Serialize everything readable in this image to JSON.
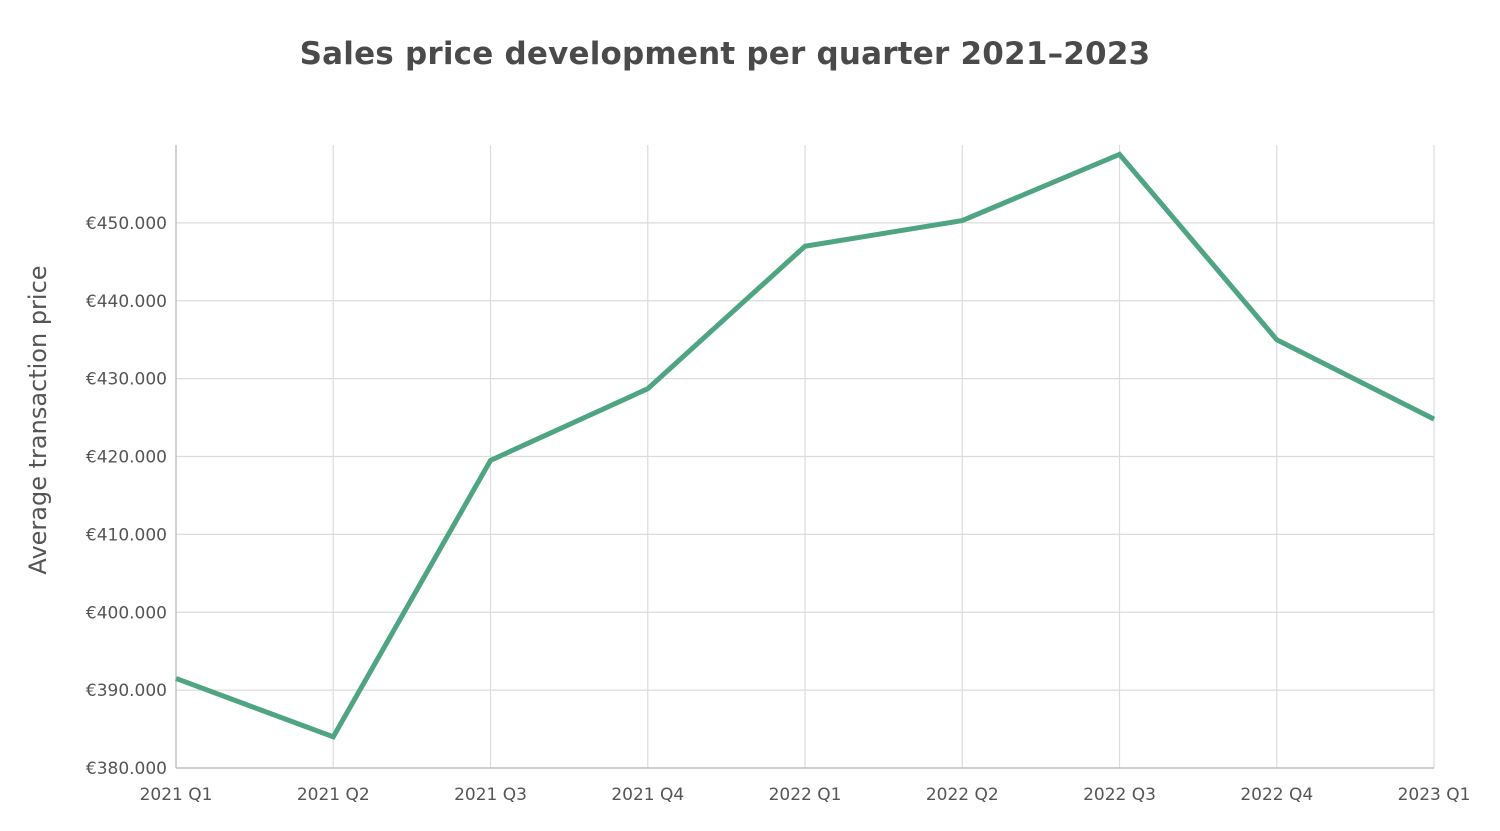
{
  "chart_data": {
    "type": "line",
    "title": "Sales price development per quarter 2021–2023",
    "xlabel": "",
    "ylabel": "Average transaction price",
    "categories": [
      "2021 Q1",
      "2021 Q2",
      "2021 Q3",
      "2021 Q4",
      "2022 Q1",
      "2022 Q2",
      "2022 Q3",
      "2022 Q4",
      "2023 Q1"
    ],
    "series": [
      {
        "color": "#4fa582",
        "values": [
          391500,
          384000,
          419500,
          428700,
          447000,
          450300,
          458800,
          435000,
          424800
        ]
      }
    ],
    "y_ticks": [
      380000,
      390000,
      400000,
      410000,
      420000,
      430000,
      440000,
      450000
    ],
    "y_tick_labels": [
      "€380.000",
      "€390.000",
      "€400.000",
      "€410.000",
      "€420.000",
      "€430.000",
      "€440.000",
      "€450.000"
    ],
    "ylim": [
      380000,
      460000
    ],
    "grid": true,
    "legend": "none"
  }
}
